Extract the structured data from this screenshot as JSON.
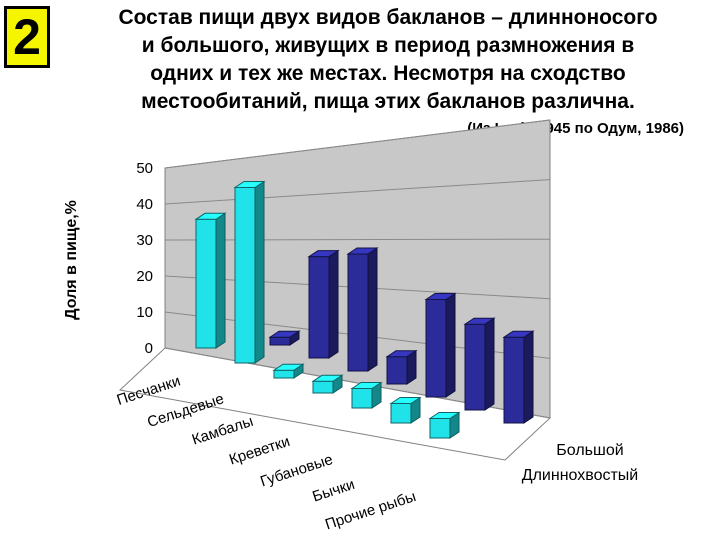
{
  "badge": "2",
  "title_lines": [
    "Состав пищи двух видов бакланов – длинноносого",
    "и большого, живущих в период размножения в",
    "одних и тех же местах. Несмотря на сходство",
    "местообитаний, пища этих бакланов различна."
  ],
  "source": "(Из Lack, 1945 по Одум, 1986)",
  "colors": {
    "long_tailed": "#1fe3e8",
    "great": "#2b2b9a",
    "wall": "#c8c8c8"
  },
  "chart_data": {
    "type": "bar",
    "ylabel": "Доля в пище,%",
    "ylim": [
      0,
      50
    ],
    "yticks": [
      "0",
      "10",
      "20",
      "30",
      "40",
      "50"
    ],
    "categories": [
      "Песчанки",
      "Сельдевые",
      "Камбалы",
      "Креветки",
      "Губановые",
      "Бычки",
      "Прочие рыбы"
    ],
    "series": [
      {
        "name": "Длиннохвостый",
        "values": [
          33,
          45,
          2,
          3,
          5,
          5,
          5
        ]
      },
      {
        "name": "Большой",
        "values": [
          2,
          26,
          30,
          7,
          25,
          22,
          22
        ]
      }
    ]
  }
}
